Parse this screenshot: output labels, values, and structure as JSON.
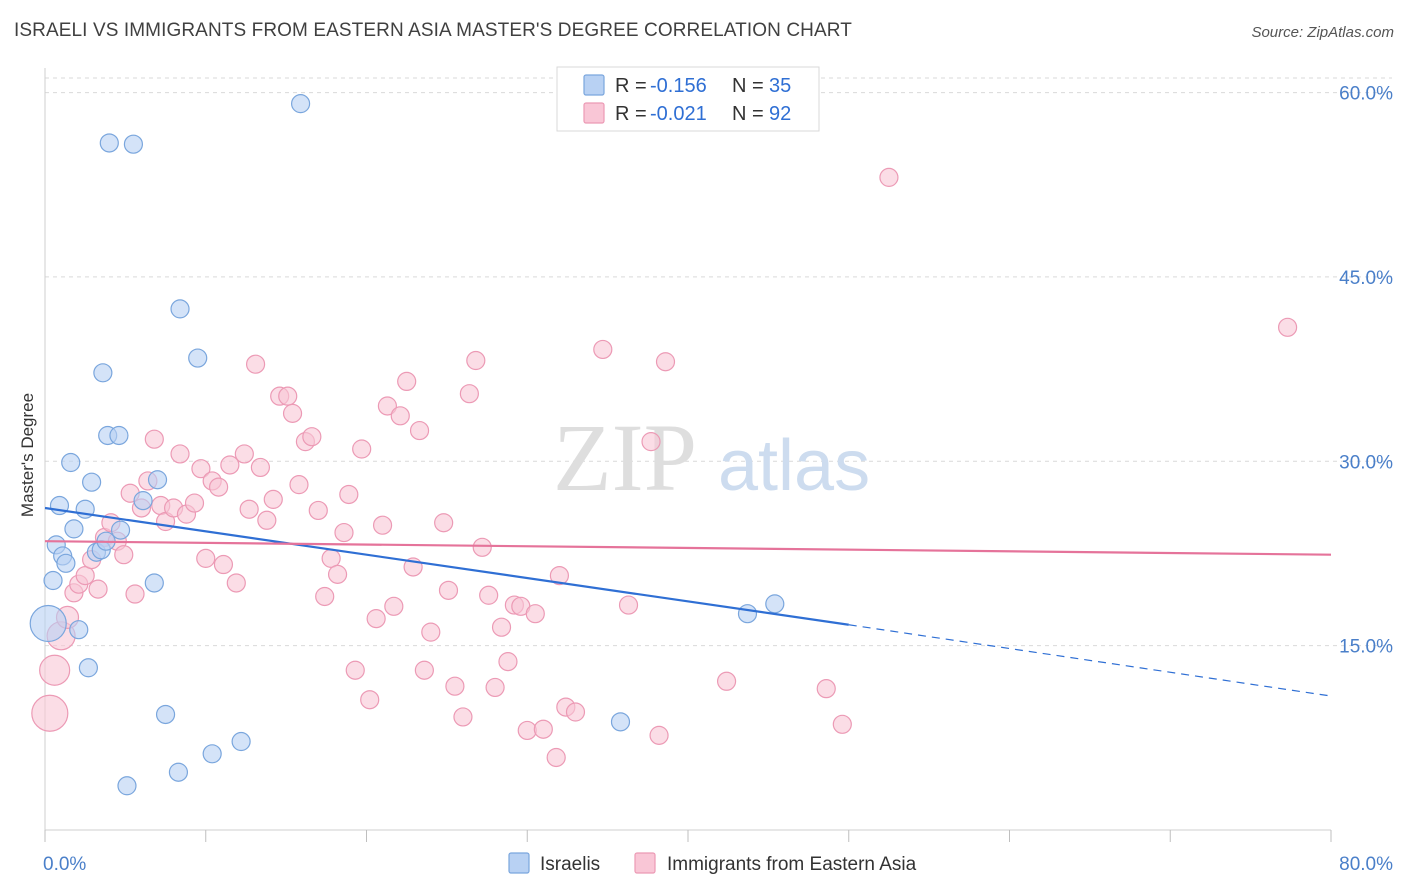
{
  "header": {
    "title": "ISRAELI VS IMMIGRANTS FROM EASTERN ASIA MASTER'S DEGREE CORRELATION CHART",
    "source": "Source: ZipAtlas.com"
  },
  "watermark": {
    "zip": "ZIP",
    "atlas": "atlas"
  },
  "chart_data": {
    "type": "scatter",
    "ylabel": "Master's Degree",
    "xlim": [
      0,
      80
    ],
    "ylim": [
      0,
      62
    ],
    "x_tick_labels": [
      {
        "value": 0,
        "label": "0.0%"
      },
      {
        "value": 80,
        "label": "80.0%"
      }
    ],
    "y_tick_labels": [
      {
        "value": 15,
        "label": "15.0%"
      },
      {
        "value": 30,
        "label": "30.0%"
      },
      {
        "value": 45,
        "label": "45.0%"
      },
      {
        "value": 60,
        "label": "60.0%"
      }
    ],
    "y_grid": [
      15,
      30,
      45,
      60
    ],
    "grid": true,
    "legend_position": "top-center",
    "legend": [
      {
        "r_label": "R =",
        "r_value": "-0.156",
        "n_label": "N =",
        "n_value": "35"
      },
      {
        "r_label": "R =",
        "r_value": "-0.021",
        "n_label": "N =",
        "n_value": "92"
      }
    ],
    "colors": {
      "israelis_fill": "#b8d1f3",
      "israelis_stroke": "#7aa6dd",
      "israelis_line": "#2f6fd4",
      "asia_fill": "#f9c6d6",
      "asia_stroke": "#ec9ab5",
      "asia_line": "#e5739a",
      "tick_label": "#4a7fc9",
      "grid": "#d9d9d9"
    },
    "series": [
      {
        "name": "Israelis",
        "trend": {
          "x0": 0,
          "y0": 26.2,
          "x1": 50,
          "y1": 16.7,
          "dash_to_x": 80,
          "dash_to_y": 10.9
        },
        "points": [
          {
            "x": 0.2,
            "y": 16.8,
            "r": 18
          },
          {
            "x": 0.5,
            "y": 20.3,
            "r": 9
          },
          {
            "x": 0.7,
            "y": 23.2,
            "r": 9
          },
          {
            "x": 0.9,
            "y": 26.4,
            "r": 9
          },
          {
            "x": 1.1,
            "y": 22.3,
            "r": 9
          },
          {
            "x": 1.3,
            "y": 21.7,
            "r": 9
          },
          {
            "x": 1.6,
            "y": 29.9,
            "r": 9
          },
          {
            "x": 1.8,
            "y": 24.5,
            "r": 9
          },
          {
            "x": 2.1,
            "y": 16.3,
            "r": 9
          },
          {
            "x": 2.5,
            "y": 26.1,
            "r": 9
          },
          {
            "x": 2.7,
            "y": 13.2,
            "r": 9
          },
          {
            "x": 2.9,
            "y": 28.3,
            "r": 9
          },
          {
            "x": 3.2,
            "y": 22.6,
            "r": 9
          },
          {
            "x": 3.5,
            "y": 22.8,
            "r": 9
          },
          {
            "x": 3.6,
            "y": 37.2,
            "r": 9
          },
          {
            "x": 3.8,
            "y": 23.5,
            "r": 9
          },
          {
            "x": 3.9,
            "y": 32.1,
            "r": 9
          },
          {
            "x": 4.0,
            "y": 55.9,
            "r": 9
          },
          {
            "x": 4.6,
            "y": 32.1,
            "r": 9
          },
          {
            "x": 4.7,
            "y": 24.4,
            "r": 9
          },
          {
            "x": 5.1,
            "y": 3.6,
            "r": 9
          },
          {
            "x": 5.5,
            "y": 55.8,
            "r": 9
          },
          {
            "x": 6.1,
            "y": 26.8,
            "r": 9
          },
          {
            "x": 6.8,
            "y": 20.1,
            "r": 9
          },
          {
            "x": 7.0,
            "y": 28.5,
            "r": 9
          },
          {
            "x": 7.5,
            "y": 9.4,
            "r": 9
          },
          {
            "x": 8.3,
            "y": 4.7,
            "r": 9
          },
          {
            "x": 8.4,
            "y": 42.4,
            "r": 9
          },
          {
            "x": 9.5,
            "y": 38.4,
            "r": 9
          },
          {
            "x": 10.4,
            "y": 6.2,
            "r": 9
          },
          {
            "x": 12.2,
            "y": 7.2,
            "r": 9
          },
          {
            "x": 15.9,
            "y": 59.1,
            "r": 9
          },
          {
            "x": 35.8,
            "y": 8.8,
            "r": 9
          },
          {
            "x": 43.7,
            "y": 17.6,
            "r": 9
          },
          {
            "x": 45.4,
            "y": 18.4,
            "r": 9
          }
        ]
      },
      {
        "name": "Immigrants from Eastern Asia",
        "trend": {
          "x0": 0,
          "y0": 23.5,
          "x1": 80,
          "y1": 22.4
        },
        "points": [
          {
            "x": 0.3,
            "y": 9.5,
            "r": 18
          },
          {
            "x": 0.6,
            "y": 13.0,
            "r": 15
          },
          {
            "x": 1.0,
            "y": 15.8,
            "r": 14
          },
          {
            "x": 1.4,
            "y": 17.3,
            "r": 11
          },
          {
            "x": 1.8,
            "y": 19.3,
            "r": 9
          },
          {
            "x": 2.1,
            "y": 20.0,
            "r": 9
          },
          {
            "x": 2.5,
            "y": 20.7,
            "r": 9
          },
          {
            "x": 2.9,
            "y": 22.0,
            "r": 9
          },
          {
            "x": 3.3,
            "y": 19.6,
            "r": 9
          },
          {
            "x": 3.7,
            "y": 23.8,
            "r": 9
          },
          {
            "x": 4.1,
            "y": 25.0,
            "r": 9
          },
          {
            "x": 4.5,
            "y": 23.5,
            "r": 9
          },
          {
            "x": 4.9,
            "y": 22.4,
            "r": 9
          },
          {
            "x": 5.3,
            "y": 27.4,
            "r": 9
          },
          {
            "x": 5.6,
            "y": 19.2,
            "r": 9
          },
          {
            "x": 6.0,
            "y": 26.2,
            "r": 9
          },
          {
            "x": 6.4,
            "y": 28.4,
            "r": 9
          },
          {
            "x": 6.8,
            "y": 31.8,
            "r": 9
          },
          {
            "x": 7.2,
            "y": 26.4,
            "r": 9
          },
          {
            "x": 7.5,
            "y": 25.1,
            "r": 9
          },
          {
            "x": 8.0,
            "y": 26.2,
            "r": 9
          },
          {
            "x": 8.4,
            "y": 30.6,
            "r": 9
          },
          {
            "x": 8.8,
            "y": 25.7,
            "r": 9
          },
          {
            "x": 9.3,
            "y": 26.6,
            "r": 9
          },
          {
            "x": 9.7,
            "y": 29.4,
            "r": 9
          },
          {
            "x": 10.0,
            "y": 22.1,
            "r": 9
          },
          {
            "x": 10.4,
            "y": 28.4,
            "r": 9
          },
          {
            "x": 10.8,
            "y": 27.9,
            "r": 9
          },
          {
            "x": 11.1,
            "y": 21.6,
            "r": 9
          },
          {
            "x": 11.5,
            "y": 29.7,
            "r": 9
          },
          {
            "x": 11.9,
            "y": 20.1,
            "r": 9
          },
          {
            "x": 12.4,
            "y": 30.6,
            "r": 9
          },
          {
            "x": 12.7,
            "y": 26.1,
            "r": 9
          },
          {
            "x": 13.1,
            "y": 37.9,
            "r": 9
          },
          {
            "x": 13.4,
            "y": 29.5,
            "r": 9
          },
          {
            "x": 13.8,
            "y": 25.2,
            "r": 9
          },
          {
            "x": 14.2,
            "y": 26.9,
            "r": 9
          },
          {
            "x": 14.6,
            "y": 35.3,
            "r": 9
          },
          {
            "x": 15.1,
            "y": 35.3,
            "r": 9
          },
          {
            "x": 15.4,
            "y": 33.9,
            "r": 9
          },
          {
            "x": 15.8,
            "y": 28.1,
            "r": 9
          },
          {
            "x": 16.2,
            "y": 31.6,
            "r": 9
          },
          {
            "x": 16.6,
            "y": 32.0,
            "r": 9
          },
          {
            "x": 17.0,
            "y": 26.0,
            "r": 9
          },
          {
            "x": 17.4,
            "y": 19.0,
            "r": 9
          },
          {
            "x": 17.8,
            "y": 22.1,
            "r": 9
          },
          {
            "x": 18.2,
            "y": 20.8,
            "r": 9
          },
          {
            "x": 18.6,
            "y": 24.2,
            "r": 9
          },
          {
            "x": 18.9,
            "y": 27.3,
            "r": 9
          },
          {
            "x": 19.3,
            "y": 13.0,
            "r": 9
          },
          {
            "x": 19.7,
            "y": 31.0,
            "r": 9
          },
          {
            "x": 20.2,
            "y": 10.6,
            "r": 9
          },
          {
            "x": 20.6,
            "y": 17.2,
            "r": 9
          },
          {
            "x": 21.0,
            "y": 24.8,
            "r": 9
          },
          {
            "x": 21.3,
            "y": 34.5,
            "r": 9
          },
          {
            "x": 21.7,
            "y": 18.2,
            "r": 9
          },
          {
            "x": 22.1,
            "y": 33.7,
            "r": 9
          },
          {
            "x": 22.5,
            "y": 36.5,
            "r": 9
          },
          {
            "x": 22.9,
            "y": 21.4,
            "r": 9
          },
          {
            "x": 23.3,
            "y": 32.5,
            "r": 9
          },
          {
            "x": 23.6,
            "y": 13.0,
            "r": 9
          },
          {
            "x": 24.0,
            "y": 16.1,
            "r": 9
          },
          {
            "x": 24.8,
            "y": 25.0,
            "r": 9
          },
          {
            "x": 25.1,
            "y": 19.5,
            "r": 9
          },
          {
            "x": 25.5,
            "y": 11.7,
            "r": 9
          },
          {
            "x": 26.0,
            "y": 9.2,
            "r": 9
          },
          {
            "x": 26.4,
            "y": 35.5,
            "r": 9
          },
          {
            "x": 26.8,
            "y": 38.2,
            "r": 9
          },
          {
            "x": 27.2,
            "y": 23.0,
            "r": 9
          },
          {
            "x": 27.6,
            "y": 19.1,
            "r": 9
          },
          {
            "x": 28.0,
            "y": 11.6,
            "r": 9
          },
          {
            "x": 28.4,
            "y": 16.5,
            "r": 9
          },
          {
            "x": 28.8,
            "y": 13.7,
            "r": 9
          },
          {
            "x": 29.2,
            "y": 18.3,
            "r": 9
          },
          {
            "x": 29.6,
            "y": 18.2,
            "r": 9
          },
          {
            "x": 30.0,
            "y": 8.1,
            "r": 9
          },
          {
            "x": 30.5,
            "y": 17.6,
            "r": 9
          },
          {
            "x": 31.0,
            "y": 8.2,
            "r": 9
          },
          {
            "x": 32.0,
            "y": 20.7,
            "r": 9
          },
          {
            "x": 31.8,
            "y": 5.9,
            "r": 9
          },
          {
            "x": 32.4,
            "y": 10.0,
            "r": 9
          },
          {
            "x": 33.0,
            "y": 9.6,
            "r": 9
          },
          {
            "x": 34.7,
            "y": 39.1,
            "r": 9
          },
          {
            "x": 36.3,
            "y": 18.3,
            "r": 9
          },
          {
            "x": 37.7,
            "y": 31.6,
            "r": 9
          },
          {
            "x": 38.2,
            "y": 7.7,
            "r": 9
          },
          {
            "x": 38.6,
            "y": 38.1,
            "r": 9
          },
          {
            "x": 42.4,
            "y": 12.1,
            "r": 9
          },
          {
            "x": 48.6,
            "y": 11.5,
            "r": 9
          },
          {
            "x": 49.6,
            "y": 8.6,
            "r": 9
          },
          {
            "x": 52.5,
            "y": 53.1,
            "r": 9
          },
          {
            "x": 77.3,
            "y": 40.9,
            "r": 9
          }
        ]
      }
    ]
  }
}
